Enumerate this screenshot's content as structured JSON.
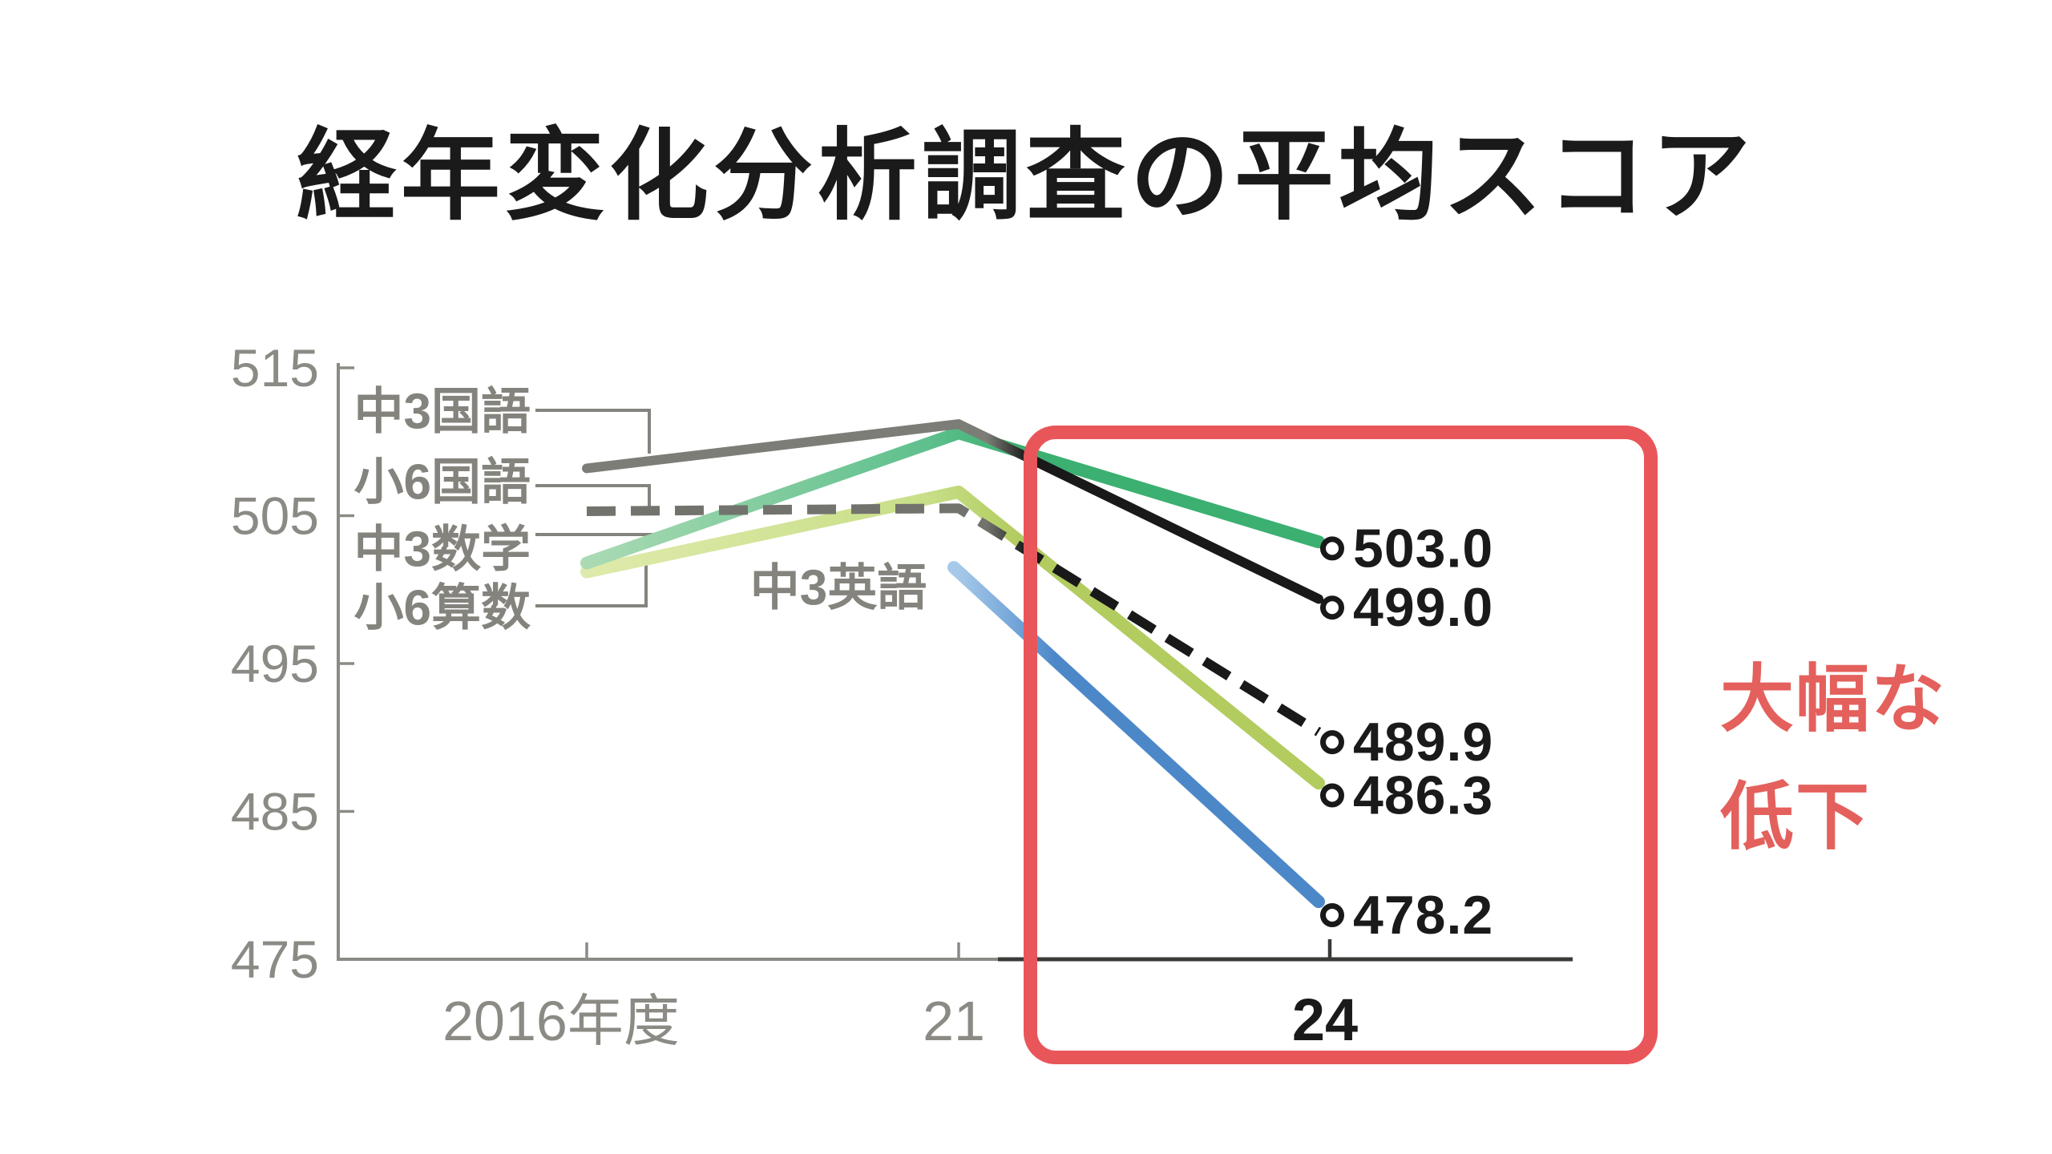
{
  "chart_data": {
    "type": "line",
    "title": "経年変化分析調査の平均スコア",
    "categories": [
      "2016年度",
      "21",
      "24"
    ],
    "xlabel": "",
    "ylabel": "",
    "ylim": [
      475,
      515
    ],
    "yticks": [
      "515",
      "505",
      "495",
      "485",
      "475"
    ],
    "ytick_values": [
      515,
      505,
      495,
      485,
      475
    ],
    "grid": false,
    "legend_position": "inline-left-callouts",
    "axis_color": "#8b8a84",
    "axis_dark_color": "#3a3a38",
    "series": [
      {
        "key": "jhs3-japanese",
        "name": "中3国語",
        "style": "solid",
        "width": 12,
        "stops": [
          [
            0,
            "#7d7d78"
          ],
          [
            0.575,
            "#7d7d78"
          ],
          [
            0.625,
            "#191919"
          ]
        ],
        "values": [
          508.2,
          511.2,
          499.0
        ],
        "end_label": "499.0"
      },
      {
        "key": "es6-japanese",
        "name": "小6国語",
        "style": "dashed",
        "width": 12,
        "stops": [
          [
            0,
            "#73736e"
          ],
          [
            0.575,
            "#73736e"
          ],
          [
            0.625,
            "#191919"
          ]
        ],
        "values": [
          505.3,
          505.5,
          489.9
        ],
        "end_label": "489.9"
      },
      {
        "key": "jhs3-math",
        "name": "中3数学",
        "style": "solid",
        "width": 16,
        "stops": [
          [
            0.05,
            "#b0dcb6"
          ],
          [
            0.5,
            "#5fc08d"
          ],
          [
            0.615,
            "#3bb071"
          ]
        ],
        "values": [
          501.8,
          510.6,
          503.0
        ],
        "end_label": "503.0"
      },
      {
        "key": "es6-math",
        "name": "小6算数",
        "style": "solid",
        "width": 16,
        "stops": [
          [
            0.05,
            "#e0ebae"
          ],
          [
            0.5,
            "#c8df88"
          ],
          [
            0.615,
            "#b2cc60"
          ]
        ],
        "values": [
          501.2,
          506.6,
          486.3
        ],
        "end_label": "486.3"
      },
      {
        "key": "jhs3-english",
        "name": "中3英語",
        "style": "solid",
        "width": 16,
        "stops": [
          [
            0.54,
            "#a6c9e9"
          ],
          [
            0.6,
            "#7baadb"
          ],
          [
            0.66,
            "#4c88c8"
          ]
        ],
        "values": [
          null,
          501.5,
          478.2
        ],
        "end_label": "478.2"
      }
    ],
    "marker": {
      "shape": "open-circle",
      "stroke": "#191919",
      "fill": "#ffffff"
    },
    "value_label_color": "#1a1a1a",
    "tick_label_color": "#8b8a84",
    "bold_x_label": "24",
    "annotation": {
      "text": "大幅な低下",
      "lines": [
        "大幅な",
        "低下"
      ],
      "color": "#e4605c"
    },
    "highlight_box": {
      "color": "#e9565a",
      "covers": "21〜24区間"
    }
  }
}
